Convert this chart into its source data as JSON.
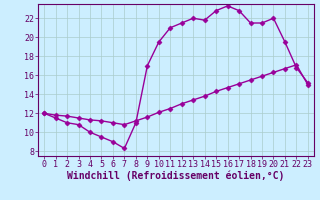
{
  "xlabel": "Windchill (Refroidissement éolien,°C)",
  "bg_color": "#cceeff",
  "line_color": "#990099",
  "grid_color": "#aacccc",
  "xlim": [
    -0.5,
    23.5
  ],
  "ylim": [
    7.5,
    23.5
  ],
  "xticks": [
    0,
    1,
    2,
    3,
    4,
    5,
    6,
    7,
    8,
    9,
    10,
    11,
    12,
    13,
    14,
    15,
    16,
    17,
    18,
    19,
    20,
    21,
    22,
    23
  ],
  "yticks": [
    8,
    10,
    12,
    14,
    16,
    18,
    20,
    22
  ],
  "series1_x": [
    0,
    1,
    2,
    3,
    4,
    5,
    6,
    7,
    8,
    9,
    10,
    11,
    12,
    13,
    14,
    15,
    16,
    17,
    18,
    19,
    20,
    21,
    22,
    23
  ],
  "series1_y": [
    12.0,
    11.5,
    11.0,
    10.8,
    10.0,
    9.5,
    9.0,
    8.3,
    11.0,
    17.0,
    19.5,
    21.0,
    21.5,
    22.0,
    21.8,
    22.8,
    23.3,
    22.8,
    21.5,
    21.5,
    22.0,
    19.5,
    16.8,
    15.2
  ],
  "series2_x": [
    0,
    1,
    2,
    3,
    4,
    5,
    6,
    7,
    8,
    9,
    10,
    11,
    12,
    13,
    14,
    15,
    16,
    17,
    18,
    19,
    20,
    21,
    22,
    23
  ],
  "series2_y": [
    12.0,
    11.8,
    11.7,
    11.5,
    11.3,
    11.2,
    11.0,
    10.8,
    11.2,
    11.6,
    12.1,
    12.5,
    13.0,
    13.4,
    13.8,
    14.3,
    14.7,
    15.1,
    15.5,
    15.9,
    16.3,
    16.7,
    17.1,
    15.0
  ],
  "marker": "D",
  "marker_size": 2.5,
  "line_width": 1.0,
  "xlabel_fontsize": 7,
  "tick_fontsize": 6,
  "tick_color": "#660066",
  "axis_color": "#660066"
}
